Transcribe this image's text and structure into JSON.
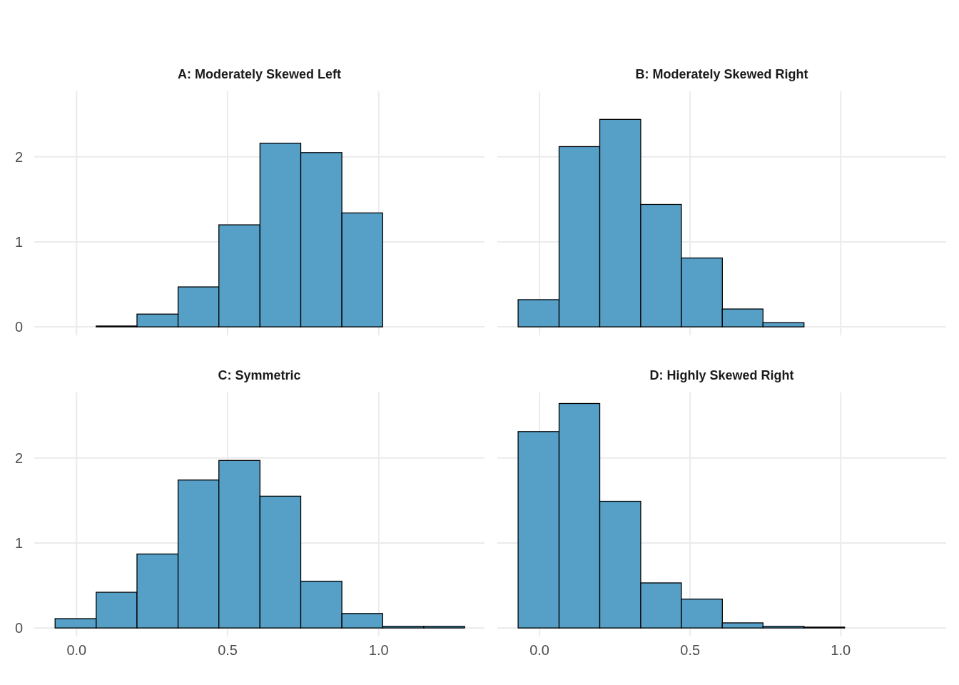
{
  "chart_data": [
    {
      "type": "histogram",
      "title": "A: Moderately Skewed Left",
      "color": "#56a0c8",
      "bins": [
        -0.071,
        0.065,
        0.2,
        0.336,
        0.471,
        0.607,
        0.742,
        0.878,
        1.013,
        1.149,
        1.284
      ],
      "values": [
        0,
        0.01,
        0.15,
        0.47,
        1.2,
        2.16,
        2.05,
        1.34,
        0,
        0
      ],
      "xlim": [
        -0.14,
        1.35
      ],
      "ylim": [
        -0.1,
        2.77
      ],
      "xticks": [
        0,
        0.5,
        1
      ],
      "yticks": [
        0,
        1,
        2
      ],
      "grid": true,
      "tick_labels": "y"
    },
    {
      "type": "histogram",
      "title": "B: Moderately Skewed Right",
      "color": "#56a0c8",
      "bins": [
        -0.071,
        0.065,
        0.2,
        0.336,
        0.471,
        0.607,
        0.742,
        0.878,
        1.013,
        1.149,
        1.284
      ],
      "values": [
        0.32,
        2.12,
        2.44,
        1.44,
        0.81,
        0.21,
        0.05,
        0,
        0,
        0
      ],
      "xlim": [
        -0.14,
        1.35
      ],
      "ylim": [
        -0.1,
        2.77
      ],
      "xticks": [
        0,
        0.5,
        1
      ],
      "yticks": [
        0,
        1,
        2
      ],
      "grid": true,
      "tick_labels": false
    },
    {
      "type": "histogram",
      "title": "C: Symmetric",
      "color": "#56a0c8",
      "bins": [
        -0.071,
        0.065,
        0.2,
        0.336,
        0.471,
        0.607,
        0.742,
        0.878,
        1.013,
        1.149,
        1.284
      ],
      "values": [
        0.11,
        0.42,
        0.87,
        1.74,
        1.97,
        1.55,
        0.55,
        0.17,
        0.02,
        0.02
      ],
      "xlim": [
        -0.14,
        1.35
      ],
      "ylim": [
        -0.1,
        2.77
      ],
      "xticks": [
        {
          "value": 0,
          "label": "0.0"
        },
        {
          "value": 0.5,
          "label": "0.5"
        },
        {
          "value": 1,
          "label": "1.0"
        }
      ],
      "yticks": [
        0,
        1,
        2
      ],
      "grid": true
    },
    {
      "type": "histogram",
      "title": "D: Highly Skewed Right",
      "color": "#56a0c8",
      "bins": [
        -0.071,
        0.065,
        0.2,
        0.336,
        0.471,
        0.607,
        0.742,
        0.878,
        1.013,
        1.149,
        1.284
      ],
      "values": [
        2.31,
        2.64,
        1.49,
        0.53,
        0.34,
        0.06,
        0.02,
        0.01,
        0,
        0
      ],
      "xlim": [
        -0.14,
        1.35
      ],
      "ylim": [
        -0.1,
        2.77
      ],
      "xticks": [
        {
          "value": 0,
          "label": "0.0"
        },
        {
          "value": 0.5,
          "label": "0.5"
        },
        {
          "value": 1,
          "label": "1.0"
        }
      ],
      "yticks": [
        0,
        1,
        2
      ],
      "grid": true,
      "tick_labels": "x"
    }
  ]
}
